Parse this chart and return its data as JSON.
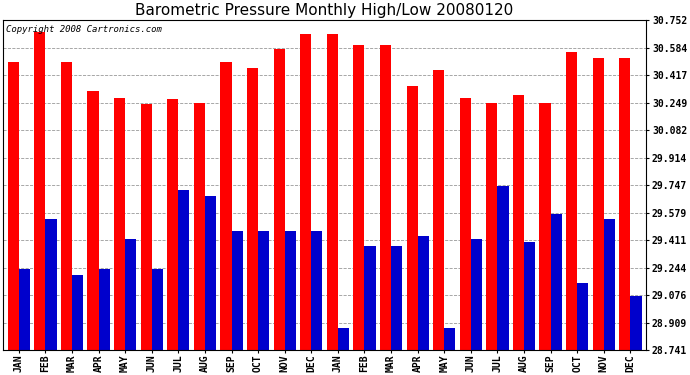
{
  "title": "Barometric Pressure Monthly High/Low 20080120",
  "copyright": "Copyright 2008 Cartronics.com",
  "months": [
    "JAN",
    "FEB",
    "MAR",
    "APR",
    "MAY",
    "JUN",
    "JUL",
    "AUG",
    "SEP",
    "OCT",
    "NOV",
    "DEC",
    "JAN",
    "FEB",
    "MAR",
    "APR",
    "MAY",
    "JUN",
    "JUL",
    "AUG",
    "SEP",
    "OCT",
    "NOV",
    "DEC"
  ],
  "highs": [
    30.5,
    30.68,
    30.5,
    30.32,
    30.28,
    30.24,
    30.27,
    30.25,
    30.5,
    30.46,
    30.58,
    30.67,
    30.67,
    30.6,
    30.6,
    30.35,
    30.45,
    30.28,
    30.25,
    30.3,
    30.25,
    30.56,
    30.52,
    30.52
  ],
  "lows": [
    29.24,
    29.54,
    29.2,
    29.24,
    29.42,
    29.24,
    29.72,
    29.68,
    29.47,
    29.47,
    29.47,
    29.47,
    28.88,
    29.38,
    29.38,
    29.44,
    28.88,
    29.42,
    29.74,
    29.4,
    29.57,
    29.15,
    29.54,
    29.07
  ],
  "bar_color_high": "#ff0000",
  "bar_color_low": "#0000cc",
  "background_color": "#ffffff",
  "ylim_min": 28.741,
  "ylim_max": 30.752,
  "yticks": [
    28.741,
    28.909,
    29.076,
    29.244,
    29.411,
    29.579,
    29.747,
    29.914,
    30.082,
    30.249,
    30.417,
    30.584,
    30.752
  ],
  "grid_color": "#999999",
  "title_fontsize": 11,
  "tick_fontsize": 7,
  "copyright_fontsize": 6.5
}
